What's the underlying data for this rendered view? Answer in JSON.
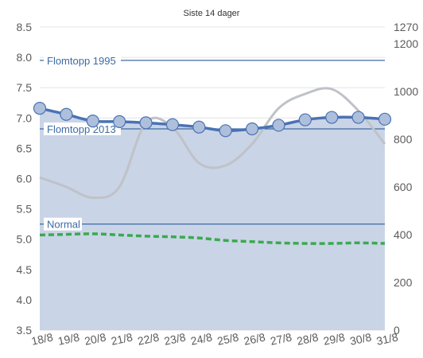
{
  "chart_data": {
    "type": "line",
    "title": "Siste 14 dager",
    "categories": [
      "18/8",
      "19/8",
      "20/8",
      "21/8",
      "22/8",
      "23/8",
      "24/8",
      "25/8",
      "26/8",
      "27/8",
      "28/8",
      "29/8",
      "30/8",
      "31/8"
    ],
    "y_left": {
      "min": 3.5,
      "max": 8.5,
      "ticks": [
        "3.5",
        "4.0",
        "4.5",
        "5.0",
        "5.5",
        "6.0",
        "6.5",
        "7.0",
        "7.5",
        "8.0",
        "8.5"
      ]
    },
    "y_right": {
      "min": 0,
      "max": 1270,
      "ticks": [
        "0",
        "200",
        "400",
        "600",
        "800",
        "1000",
        "1200",
        "1270"
      ]
    },
    "grid": true,
    "reference_lines": [
      {
        "label": "Flomtopp 1995",
        "value": 7.95,
        "color": "#3d6ba3"
      },
      {
        "label": "Flomtopp 2013",
        "value": 6.82,
        "color": "#3d6ba3"
      },
      {
        "label": "Normal",
        "value": 5.25,
        "color": "#3d6ba3"
      }
    ],
    "series": [
      {
        "style": "area-line-markers",
        "axis": "left",
        "color": "#4a72b5",
        "fill": "#c9d4e6",
        "values": [
          7.16,
          7.06,
          6.95,
          6.94,
          6.92,
          6.89,
          6.85,
          6.79,
          6.82,
          6.88,
          6.97,
          7.01,
          7.01,
          6.98
        ]
      },
      {
        "style": "line",
        "axis": "right",
        "color": "#bfc2c8",
        "values": [
          640,
          600,
          555,
          600,
          870,
          850,
          700,
          690,
          780,
          930,
          990,
          1010,
          920,
          780
        ]
      },
      {
        "style": "dashed",
        "axis": "left",
        "color": "#3aaa4f",
        "values": [
          5.07,
          5.08,
          5.09,
          5.07,
          5.05,
          5.04,
          5.02,
          4.98,
          4.96,
          4.94,
          4.93,
          4.93,
          4.94,
          4.93
        ]
      }
    ]
  }
}
